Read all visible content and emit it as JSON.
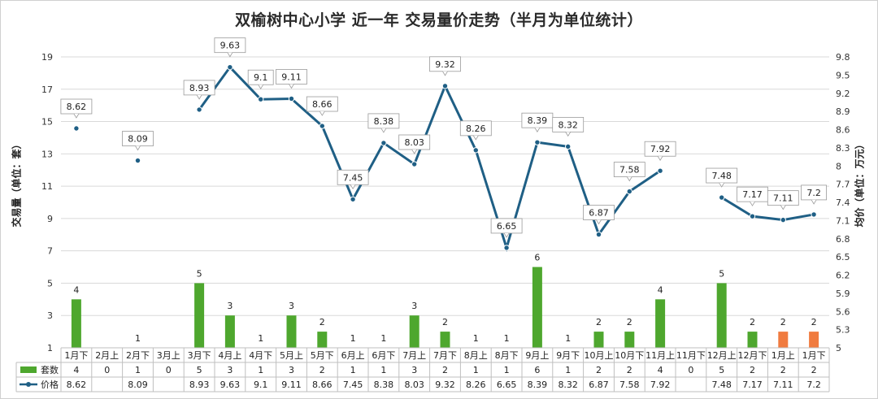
{
  "chart_data": {
    "type": "bar+line",
    "title": "双榆树中心小学 近一年 交易量价走势（半月为单位统计）",
    "ylabel_left": "交易量（单位：套）",
    "ylabel_right": "均价（单位：万元）",
    "categories": [
      "1月下",
      "2月上",
      "2月下",
      "3月上",
      "3月下",
      "4月上",
      "4月下",
      "5月上",
      "5月下",
      "6月上",
      "6月下",
      "7月上",
      "7月下",
      "8月上",
      "8月下",
      "9月上",
      "9月下",
      "10月上",
      "10月下",
      "11月上",
      "11月下",
      "12月上",
      "12月下",
      "1月上",
      "1月下"
    ],
    "left_axis": {
      "ticks": [
        "1",
        "3",
        "5",
        "7",
        "9",
        "11",
        "13",
        "15",
        "17",
        "19"
      ],
      "min": 1,
      "max": 19
    },
    "right_axis": {
      "ticks": [
        "5",
        "5.3",
        "5.6",
        "5.9",
        "6.2",
        "6.5",
        "6.8",
        "7.1",
        "7.4",
        "7.7",
        "8",
        "8.3",
        "8.6",
        "8.9",
        "9.2",
        "9.5",
        "9.8"
      ],
      "min": 5,
      "max": 9.8
    },
    "series": [
      {
        "name": "套数",
        "type": "bar",
        "values": [
          4,
          0,
          1,
          0,
          5,
          3,
          1,
          3,
          2,
          1,
          1,
          3,
          2,
          1,
          1,
          6,
          1,
          2,
          2,
          4,
          0,
          5,
          2,
          2,
          2
        ],
        "table_values": [
          "4",
          "0",
          "1",
          "0",
          "5",
          "3",
          "1",
          "3",
          "2",
          "1",
          "1",
          "3",
          "2",
          "1",
          "1",
          "6",
          "1",
          "2",
          "2",
          "4",
          "0",
          "5",
          "2",
          "2",
          "2"
        ],
        "color": "#4ea72e",
        "highlight_color": "#f07b3f",
        "highlight_from_index": 23
      },
      {
        "name": "价格",
        "type": "line",
        "values": [
          8.62,
          null,
          8.09,
          null,
          8.93,
          9.63,
          9.1,
          9.11,
          8.66,
          7.45,
          8.38,
          8.03,
          9.32,
          8.26,
          6.65,
          8.39,
          8.32,
          6.87,
          7.58,
          7.92,
          null,
          7.48,
          7.17,
          7.11,
          7.2
        ],
        "table_values": [
          "8.62",
          "",
          "8.09",
          "",
          "8.93",
          "9.63",
          "9.1",
          "9.11",
          "8.66",
          "7.45",
          "8.38",
          "8.03",
          "9.32",
          "8.26",
          "6.65",
          "8.39",
          "8.32",
          "6.87",
          "7.58",
          "7.92",
          "",
          "7.48",
          "7.17",
          "7.11",
          "7.2"
        ],
        "color": "#1f5f85"
      }
    ],
    "grid": true,
    "legend": "bottom-table"
  }
}
